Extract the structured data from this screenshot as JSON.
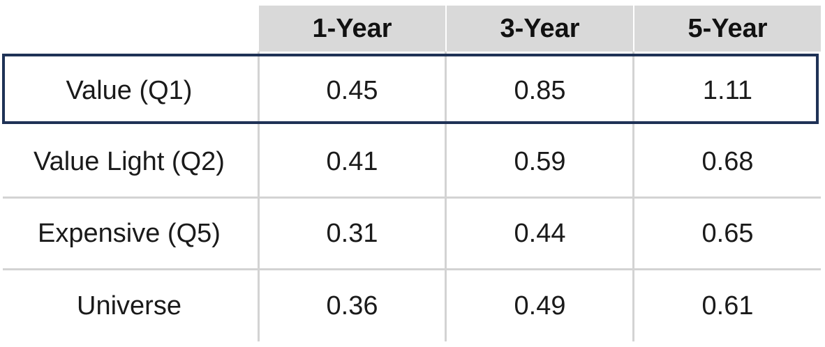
{
  "chart_data": {
    "type": "table",
    "columns": [
      "1-Year",
      "3-Year",
      "5-Year"
    ],
    "rows": [
      {
        "label": "Value (Q1)",
        "values": [
          "0.45",
          "0.85",
          "1.11"
        ]
      },
      {
        "label": "Value Light (Q2)",
        "values": [
          "0.41",
          "0.59",
          "0.68"
        ]
      },
      {
        "label": "Expensive (Q5)",
        "values": [
          "0.31",
          "0.44",
          "0.65"
        ]
      },
      {
        "label": "Universe",
        "values": [
          "0.36",
          "0.49",
          "0.61"
        ]
      }
    ],
    "highlighted_row": "Value (Q1)",
    "colors": {
      "header_bg": "#d9d9d9",
      "highlight_border": "#1f3256",
      "grid": "#d3d3d3"
    }
  }
}
